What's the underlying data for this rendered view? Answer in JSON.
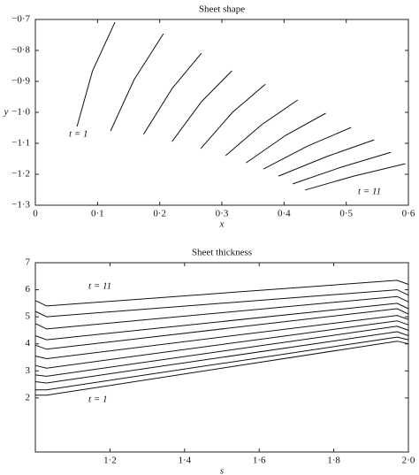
{
  "chart_data": [
    {
      "type": "line",
      "title": "Sheet shape",
      "xlabel": "x",
      "ylabel": "y",
      "xlim": [
        0,
        0.6
      ],
      "ylim": [
        -1.3,
        -0.7
      ],
      "xticks": [
        0,
        {
          "value": 0.1,
          "label": "0·1"
        },
        {
          "value": 0.2,
          "label": "0·2"
        },
        {
          "value": 0.3,
          "label": "0·3"
        },
        {
          "value": 0.4,
          "label": "0·4"
        },
        {
          "value": 0.5,
          "label": "0·5"
        },
        {
          "value": 0.6,
          "label": "0·6"
        }
      ],
      "yticks": [
        {
          "value": -0.7,
          "label": "−0·7"
        },
        {
          "value": -0.8,
          "label": "−0·8"
        },
        {
          "value": -0.9,
          "label": "−0·9"
        },
        {
          "value": -1.0,
          "label": "−1·0"
        },
        {
          "value": -1.1,
          "label": "−1·1"
        },
        {
          "value": -1.2,
          "label": "−1·2"
        },
        {
          "value": -1.3,
          "label": "−1·3"
        }
      ],
      "annotations": [
        "t = 1",
        "t = 11"
      ],
      "series": [
        {
          "color": "#111",
          "x": [
            0.067,
            0.092,
            0.128
          ],
          "values": [
            -1.046,
            -0.866,
            -0.709
          ]
        },
        {
          "color": "#111",
          "x": [
            0.121,
            0.159,
            0.206
          ],
          "values": [
            -1.06,
            -0.894,
            -0.746
          ]
        },
        {
          "color": "#111",
          "x": [
            0.174,
            0.22,
            0.267
          ],
          "values": [
            -1.071,
            -0.923,
            -0.809
          ]
        },
        {
          "color": "#111",
          "x": [
            0.22,
            0.267,
            0.316
          ],
          "values": [
            -1.094,
            -0.966,
            -0.866
          ]
        },
        {
          "color": "#111",
          "x": [
            0.266,
            0.317,
            0.37
          ],
          "values": [
            -1.117,
            -1.0,
            -0.909
          ]
        },
        {
          "color": "#111",
          "x": [
            0.306,
            0.364,
            0.422
          ],
          "values": [
            -1.14,
            -1.04,
            -0.96
          ]
        },
        {
          "color": "#111",
          "x": [
            0.339,
            0.403,
            0.467
          ],
          "values": [
            -1.163,
            -1.074,
            -1.003
          ]
        },
        {
          "color": "#111",
          "x": [
            0.367,
            0.438,
            0.508
          ],
          "values": [
            -1.183,
            -1.109,
            -1.049
          ]
        },
        {
          "color": "#111",
          "x": [
            0.391,
            0.468,
            0.545
          ],
          "values": [
            -1.206,
            -1.143,
            -1.089
          ]
        },
        {
          "color": "#111",
          "x": [
            0.414,
            0.492,
            0.572
          ],
          "values": [
            -1.231,
            -1.177,
            -1.129
          ]
        },
        {
          "color": "#111",
          "x": [
            0.434,
            0.512,
            0.595
          ],
          "values": [
            -1.251,
            -1.206,
            -1.166
          ]
        }
      ]
    },
    {
      "type": "line",
      "title": "Sheet thickness",
      "xlabel": "s",
      "xlim": [
        1.0,
        2.0
      ],
      "ylim": [
        0,
        7
      ],
      "xticks": [
        {
          "value": 1.2,
          "label": "1·2"
        },
        {
          "value": 1.4,
          "label": "1·4"
        },
        {
          "value": 1.6,
          "label": "1·6"
        },
        {
          "value": 1.8,
          "label": "1·8"
        },
        {
          "value": 2.0,
          "label": "2·0"
        }
      ],
      "yticks": [
        2,
        3,
        4,
        5,
        6,
        7
      ],
      "annotations": [
        "t = 11",
        "t = 1"
      ],
      "x": [
        1.0,
        1.03,
        1.97,
        2.0
      ],
      "series": [
        {
          "color": "#111",
          "values": [
            2.1,
            2.1,
            4.1,
            4.0
          ]
        },
        {
          "color": "#111",
          "values": [
            2.3,
            2.3,
            4.25,
            4.15
          ]
        },
        {
          "color": "#111",
          "values": [
            2.6,
            2.55,
            4.45,
            4.3
          ]
        },
        {
          "color": "#111",
          "values": [
            2.85,
            2.8,
            4.65,
            4.5
          ]
        },
        {
          "color": "#111",
          "values": [
            3.2,
            3.1,
            4.85,
            4.7
          ]
        },
        {
          "color": "#111",
          "values": [
            3.55,
            3.45,
            5.05,
            4.9
          ]
        },
        {
          "color": "#111",
          "values": [
            3.95,
            3.8,
            5.3,
            5.1
          ]
        },
        {
          "color": "#111",
          "values": [
            4.3,
            4.15,
            5.5,
            5.3
          ]
        },
        {
          "color": "#111",
          "values": [
            4.75,
            4.55,
            5.75,
            5.55
          ]
        },
        {
          "color": "#111",
          "values": [
            5.2,
            5.0,
            6.0,
            5.8
          ]
        },
        {
          "color": "#111",
          "values": [
            5.6,
            5.4,
            6.35,
            6.2
          ]
        }
      ]
    }
  ]
}
